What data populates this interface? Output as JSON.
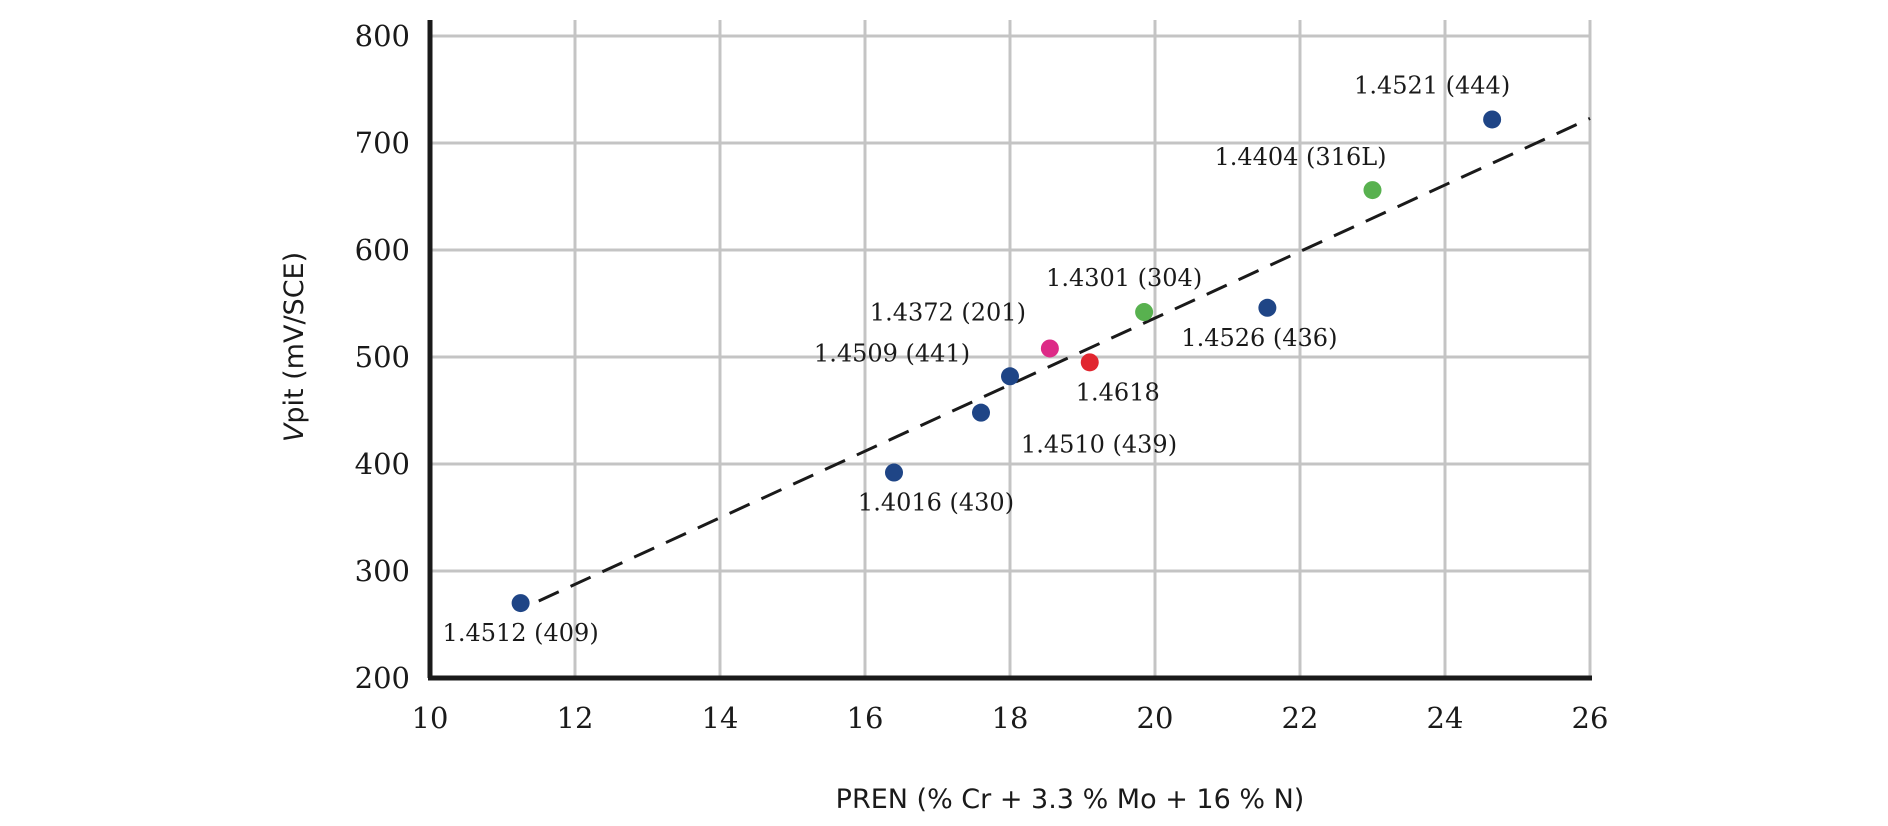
{
  "chart_data": {
    "type": "scatter",
    "title": "",
    "xlabel": "PREN (% Cr + 3.3 % Mo + 16 % N)",
    "ylabel_italic": "V",
    "ylabel_rest": "pit (mV/SCE)",
    "xlim": [
      10,
      26
    ],
    "ylim": [
      200,
      800
    ],
    "xticks": [
      10,
      12,
      14,
      16,
      18,
      20,
      22,
      24,
      26
    ],
    "yticks": [
      200,
      300,
      400,
      500,
      600,
      700,
      800
    ],
    "grid": true,
    "colors": {
      "ferritic": "#1f4586",
      "austenitic": "#58b14f",
      "high_manganese": "#dd2a87",
      "grade_1_4618": "#e1262f",
      "grid": "#c4c4c4",
      "axis": "#1a1a1a"
    },
    "points": [
      {
        "label": "1.4512 (409)",
        "x": 11.25,
        "y": 270,
        "group": "ferritic"
      },
      {
        "label": "1.4016 (430)",
        "x": 16.4,
        "y": 392,
        "group": "ferritic"
      },
      {
        "label": "1.4510 (439)",
        "x": 17.6,
        "y": 448,
        "group": "ferritic"
      },
      {
        "label": "1.4509 (441)",
        "x": 18.0,
        "y": 482,
        "group": "ferritic"
      },
      {
        "label": "1.4372 (201)",
        "x": 18.55,
        "y": 508,
        "group": "high_manganese"
      },
      {
        "label": "1.4618",
        "x": 19.1,
        "y": 495,
        "group": "grade_1_4618"
      },
      {
        "label": "1.4301 (304)",
        "x": 19.85,
        "y": 542,
        "group": "austenitic"
      },
      {
        "label": "1.4526 (436)",
        "x": 21.55,
        "y": 546,
        "group": "ferritic"
      },
      {
        "label": "1.4404 (316L)",
        "x": 23.0,
        "y": 656,
        "group": "austenitic"
      },
      {
        "label": "1.4521 (444)",
        "x": 24.65,
        "y": 722,
        "group": "ferritic"
      }
    ],
    "trendline": {
      "x": [
        11.5,
        26.0
      ],
      "y": [
        272,
        723
      ]
    }
  }
}
